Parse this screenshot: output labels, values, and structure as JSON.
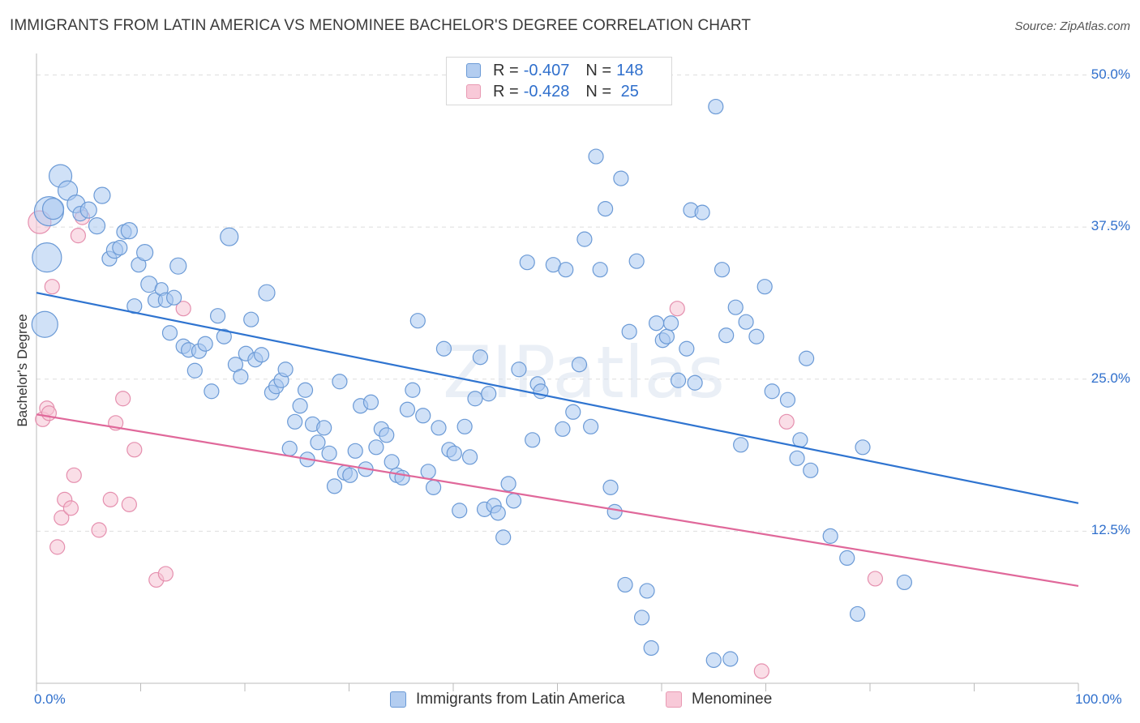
{
  "title": "IMMIGRANTS FROM LATIN AMERICA VS MENOMINEE BACHELOR'S DEGREE CORRELATION CHART",
  "source": "Source: ZipAtlas.com",
  "watermark": "ZIPatlas",
  "colors": {
    "blue_fill": "#aac8f0",
    "blue_stroke": "#6b9ad6",
    "blue_line": "#2f74d0",
    "pink_fill": "#f6c3d3",
    "pink_stroke": "#e58fae",
    "pink_line": "#e0689a",
    "tick_text": "#2f6fcc",
    "grid": "#dddddd"
  },
  "legend": {
    "rows": [
      {
        "r_label": "R = ",
        "r_value": "-0.407",
        "n_label": "N = ",
        "n_value": "148"
      },
      {
        "r_label": "R = ",
        "r_value": "-0.428",
        "n_label": "N = ",
        "n_value": " 25"
      }
    ]
  },
  "bottom_legend": [
    "Immigrants from Latin America",
    "Menominee"
  ],
  "chart_data": {
    "type": "scatter",
    "xlabel": "",
    "ylabel": "Bachelor's Degree",
    "xlim": [
      0,
      100
    ],
    "ylim": [
      0,
      51.5
    ],
    "x_tick_labels": [
      "0.0%",
      "100.0%"
    ],
    "y_ticks": [
      12.5,
      25.0,
      37.5,
      50.0
    ],
    "y_tick_labels": [
      "12.5%",
      "25.0%",
      "37.5%",
      "50.0%"
    ],
    "series": [
      {
        "name": "Immigrants from Latin America",
        "R": -0.407,
        "N": 148,
        "trend": {
          "x": [
            0,
            100
          ],
          "y": [
            32.1,
            14.8
          ]
        },
        "points": [
          [
            0.8,
            29.5,
            16
          ],
          [
            1.0,
            35.0,
            18
          ],
          [
            1.2,
            38.8,
            18
          ],
          [
            1.6,
            39.0,
            13
          ],
          [
            2.3,
            41.7,
            14
          ],
          [
            3.0,
            40.5,
            12
          ],
          [
            3.8,
            39.4,
            11
          ],
          [
            4.2,
            38.6,
            9
          ],
          [
            5.0,
            38.9,
            10
          ],
          [
            5.8,
            37.6,
            10
          ],
          [
            6.3,
            40.1,
            10
          ],
          [
            7.0,
            34.9,
            9
          ],
          [
            7.5,
            35.6,
            10
          ],
          [
            8.0,
            35.8,
            9
          ],
          [
            8.4,
            37.1,
            9
          ],
          [
            8.9,
            37.2,
            10
          ],
          [
            9.4,
            31.0,
            9
          ],
          [
            9.8,
            34.4,
            9
          ],
          [
            10.4,
            35.4,
            10
          ],
          [
            10.8,
            32.8,
            10
          ],
          [
            11.4,
            31.5,
            9
          ],
          [
            12.0,
            32.4,
            8
          ],
          [
            12.4,
            31.5,
            9
          ],
          [
            12.8,
            28.8,
            9
          ],
          [
            13.2,
            31.7,
            9
          ],
          [
            13.6,
            34.3,
            10
          ],
          [
            14.1,
            27.7,
            9
          ],
          [
            14.6,
            27.4,
            9
          ],
          [
            15.2,
            25.7,
            9
          ],
          [
            15.6,
            27.3,
            9
          ],
          [
            16.2,
            27.9,
            9
          ],
          [
            16.8,
            24.0,
            9
          ],
          [
            17.4,
            30.2,
            9
          ],
          [
            18.0,
            28.5,
            9
          ],
          [
            18.5,
            36.7,
            11
          ],
          [
            19.1,
            26.2,
            9
          ],
          [
            19.6,
            25.2,
            9
          ],
          [
            20.1,
            27.1,
            9
          ],
          [
            20.6,
            29.9,
            9
          ],
          [
            21.0,
            26.6,
            9
          ],
          [
            21.6,
            27.0,
            9
          ],
          [
            22.1,
            32.1,
            10
          ],
          [
            22.6,
            23.9,
            9
          ],
          [
            23.0,
            24.4,
            9
          ],
          [
            23.5,
            24.9,
            9
          ],
          [
            23.9,
            25.8,
            9
          ],
          [
            24.3,
            19.3,
            9
          ],
          [
            24.8,
            21.5,
            9
          ],
          [
            25.3,
            22.8,
            9
          ],
          [
            25.8,
            24.1,
            9
          ],
          [
            26.0,
            18.4,
            9
          ],
          [
            26.5,
            21.3,
            9
          ],
          [
            27.0,
            19.8,
            9
          ],
          [
            27.6,
            21.0,
            9
          ],
          [
            28.1,
            18.9,
            9
          ],
          [
            28.6,
            16.2,
            9
          ],
          [
            29.1,
            24.8,
            9
          ],
          [
            29.6,
            17.3,
            9
          ],
          [
            30.1,
            17.1,
            9
          ],
          [
            30.6,
            19.1,
            9
          ],
          [
            31.1,
            22.8,
            9
          ],
          [
            31.6,
            17.6,
            9
          ],
          [
            32.1,
            23.1,
            9
          ],
          [
            32.6,
            19.4,
            9
          ],
          [
            33.1,
            20.9,
            9
          ],
          [
            33.6,
            20.4,
            9
          ],
          [
            34.1,
            18.2,
            9
          ],
          [
            34.6,
            17.1,
            9
          ],
          [
            35.1,
            16.9,
            9
          ],
          [
            35.6,
            22.5,
            9
          ],
          [
            36.1,
            24.1,
            9
          ],
          [
            36.6,
            29.8,
            9
          ],
          [
            37.1,
            22.0,
            9
          ],
          [
            37.6,
            17.4,
            9
          ],
          [
            38.1,
            16.1,
            9
          ],
          [
            38.6,
            21.0,
            9
          ],
          [
            39.1,
            27.5,
            9
          ],
          [
            39.6,
            19.2,
            9
          ],
          [
            40.1,
            18.9,
            9
          ],
          [
            40.6,
            14.2,
            9
          ],
          [
            41.1,
            21.1,
            9
          ],
          [
            41.6,
            18.6,
            9
          ],
          [
            42.1,
            23.4,
            9
          ],
          [
            42.6,
            26.8,
            9
          ],
          [
            43.0,
            14.3,
            9
          ],
          [
            43.4,
            23.8,
            9
          ],
          [
            43.9,
            14.6,
            9
          ],
          [
            44.3,
            14.0,
            9
          ],
          [
            44.8,
            12.0,
            9
          ],
          [
            45.3,
            16.4,
            9
          ],
          [
            45.8,
            15.0,
            9
          ],
          [
            46.3,
            25.8,
            9
          ],
          [
            47.1,
            34.6,
            9
          ],
          [
            47.6,
            20.0,
            9
          ],
          [
            48.1,
            24.6,
            9
          ],
          [
            48.4,
            24.0,
            9
          ],
          [
            49.6,
            34.4,
            9
          ],
          [
            50.5,
            20.9,
            9
          ],
          [
            50.8,
            34.0,
            9
          ],
          [
            51.5,
            22.3,
            9
          ],
          [
            52.1,
            26.2,
            9
          ],
          [
            52.6,
            36.5,
            9
          ],
          [
            53.2,
            21.1,
            9
          ],
          [
            53.7,
            43.3,
            9
          ],
          [
            54.1,
            34.0,
            9
          ],
          [
            54.6,
            39.0,
            9
          ],
          [
            55.1,
            16.1,
            9
          ],
          [
            55.5,
            14.1,
            9
          ],
          [
            56.1,
            41.5,
            9
          ],
          [
            56.5,
            8.1,
            9
          ],
          [
            56.9,
            28.9,
            9
          ],
          [
            57.6,
            34.7,
            9
          ],
          [
            58.1,
            5.4,
            9
          ],
          [
            58.6,
            7.6,
            9
          ],
          [
            59.0,
            2.9,
            9
          ],
          [
            59.5,
            29.6,
            9
          ],
          [
            60.1,
            28.2,
            9
          ],
          [
            60.5,
            28.5,
            9
          ],
          [
            60.9,
            29.6,
            9
          ],
          [
            61.6,
            24.9,
            9
          ],
          [
            62.4,
            27.5,
            9
          ],
          [
            62.8,
            38.9,
            9
          ],
          [
            63.2,
            24.7,
            9
          ],
          [
            63.9,
            38.7,
            9
          ],
          [
            65.0,
            1.9,
            9
          ],
          [
            65.2,
            47.4,
            9
          ],
          [
            65.8,
            34.0,
            9
          ],
          [
            66.2,
            28.6,
            9
          ],
          [
            66.6,
            2.0,
            9
          ],
          [
            67.1,
            30.9,
            9
          ],
          [
            67.6,
            19.6,
            9
          ],
          [
            68.1,
            29.7,
            9
          ],
          [
            69.1,
            28.5,
            9
          ],
          [
            69.9,
            32.6,
            9
          ],
          [
            70.6,
            24.0,
            9
          ],
          [
            72.1,
            23.3,
            9
          ],
          [
            73.0,
            18.5,
            9
          ],
          [
            73.3,
            20.0,
            9
          ],
          [
            73.9,
            26.7,
            9
          ],
          [
            74.3,
            17.5,
            9
          ],
          [
            76.2,
            12.1,
            9
          ],
          [
            77.8,
            10.3,
            9
          ],
          [
            78.8,
            5.7,
            9
          ],
          [
            79.3,
            19.4,
            9
          ],
          [
            83.3,
            8.3,
            9
          ]
        ]
      },
      {
        "name": "Menominee",
        "R": -0.428,
        "N": 25,
        "trend": {
          "x": [
            0,
            100
          ],
          "y": [
            22.1,
            8.0
          ]
        },
        "points": [
          [
            0.3,
            37.9,
            14
          ],
          [
            0.6,
            21.7,
            9
          ],
          [
            1.0,
            22.6,
            9
          ],
          [
            1.2,
            22.2,
            9
          ],
          [
            1.5,
            32.6,
            9
          ],
          [
            2.0,
            11.2,
            9
          ],
          [
            2.4,
            13.6,
            9
          ],
          [
            2.7,
            15.1,
            9
          ],
          [
            3.3,
            14.4,
            9
          ],
          [
            3.6,
            17.1,
            9
          ],
          [
            4.0,
            36.8,
            9
          ],
          [
            4.4,
            38.3,
            9
          ],
          [
            6.0,
            12.6,
            9
          ],
          [
            7.1,
            15.1,
            9
          ],
          [
            7.6,
            21.4,
            9
          ],
          [
            8.3,
            23.4,
            9
          ],
          [
            8.9,
            14.7,
            9
          ],
          [
            9.4,
            19.2,
            9
          ],
          [
            11.5,
            8.5,
            9
          ],
          [
            12.4,
            9.0,
            9
          ],
          [
            14.1,
            30.8,
            9
          ],
          [
            61.5,
            30.8,
            9
          ],
          [
            69.6,
            1.0,
            9
          ],
          [
            72.0,
            21.5,
            9
          ],
          [
            80.5,
            8.6,
            9
          ]
        ]
      }
    ]
  }
}
